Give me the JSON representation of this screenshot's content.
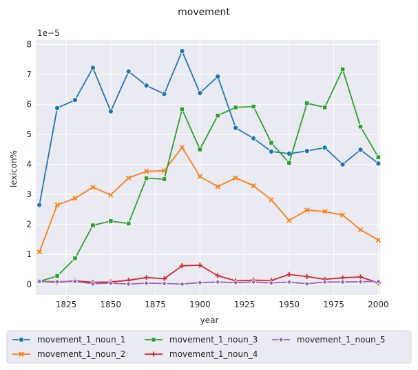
{
  "chart_data": {
    "type": "line",
    "title": "movement",
    "xlabel": "year",
    "ylabel": "lexicon%",
    "y_multiplier": "1e−5",
    "xlim": [
      1808,
      2001
    ],
    "ylim": [
      -0.35,
      8.15
    ],
    "xticks": [
      1825,
      1850,
      1875,
      1900,
      1925,
      1950,
      1975,
      2000
    ],
    "yticks": [
      0,
      1,
      2,
      3,
      4,
      5,
      6,
      7,
      8
    ],
    "grid": true,
    "legend_position": "bottom",
    "x": [
      1810,
      1820,
      1830,
      1840,
      1850,
      1860,
      1870,
      1880,
      1890,
      1900,
      1910,
      1920,
      1930,
      1940,
      1950,
      1960,
      1970,
      1980,
      1990,
      2000
    ],
    "series": [
      {
        "name": "movement_1_noun_1",
        "color": "#1f77b4",
        "marker": "circle",
        "values": [
          2.65,
          5.88,
          6.15,
          7.22,
          5.77,
          7.1,
          6.63,
          6.35,
          7.78,
          6.38,
          6.93,
          5.22,
          4.87,
          4.43,
          4.36,
          4.45,
          4.56,
          4.0,
          4.49,
          4.03
        ]
      },
      {
        "name": "movement_1_noun_2",
        "color": "#ff7f0e",
        "marker": "x",
        "values": [
          1.08,
          2.65,
          2.87,
          3.24,
          2.98,
          3.55,
          3.77,
          3.79,
          4.57,
          3.6,
          3.26,
          3.55,
          3.29,
          2.82,
          2.13,
          2.48,
          2.43,
          2.31,
          1.82,
          1.48
        ]
      },
      {
        "name": "movement_1_noun_3",
        "color": "#2ca02c",
        "marker": "square",
        "values": [
          0.1,
          0.28,
          0.87,
          1.97,
          2.11,
          2.03,
          3.54,
          3.51,
          5.84,
          4.5,
          5.63,
          5.9,
          5.93,
          4.72,
          4.05,
          6.04,
          5.9,
          7.17,
          5.26,
          4.24
        ]
      },
      {
        "name": "movement_1_noun_4",
        "color": "#d62728",
        "marker": "plus",
        "values": [
          0.1,
          0.07,
          0.12,
          0.07,
          0.08,
          0.14,
          0.23,
          0.19,
          0.62,
          0.64,
          0.29,
          0.12,
          0.14,
          0.13,
          0.33,
          0.26,
          0.17,
          0.22,
          0.25,
          0.05
        ]
      },
      {
        "name": "movement_1_noun_5",
        "color": "#9467bd",
        "marker": "diamond",
        "values": [
          0.1,
          0.09,
          0.1,
          0.02,
          0.04,
          0.01,
          0.04,
          0.03,
          0.01,
          0.06,
          0.08,
          0.06,
          0.08,
          0.05,
          0.08,
          0.02,
          0.08,
          0.08,
          0.09,
          0.1
        ]
      }
    ]
  }
}
